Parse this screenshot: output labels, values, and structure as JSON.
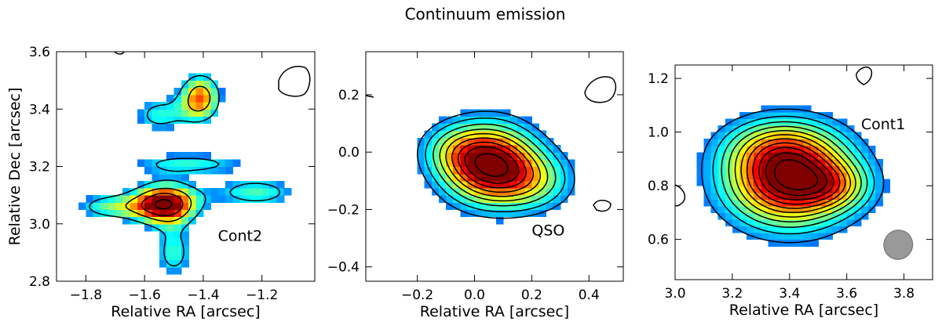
{
  "title": "Continuum emission",
  "chart_data": [
    {
      "type": "heatmap",
      "xlabel": "Relative RA [arcsec]",
      "ylabel": "Relative Dec [arcsec]",
      "xlim": [
        -1.9,
        -1.02
      ],
      "ylim": [
        2.8,
        3.6
      ],
      "xticks": [
        -1.8,
        -1.6,
        -1.4,
        -1.2
      ],
      "xtick_labels": [
        "−1.8",
        "−1.6",
        "−1.4",
        "−1.2"
      ],
      "yticks": [
        2.8,
        3.0,
        3.2,
        3.4,
        3.6
      ],
      "ytick_labels": [
        "2.8",
        "3.0",
        "3.2",
        "3.4",
        "3.6"
      ],
      "label": {
        "text": "Cont2",
        "x": -1.35,
        "y": 2.94
      },
      "colormap": "jet",
      "components": [
        {
          "x": -1.53,
          "y": 3.07,
          "sx": 0.08,
          "sy": 0.05,
          "amp": 1.0
        },
        {
          "x": -1.41,
          "y": 3.44,
          "sx": 0.05,
          "sy": 0.06,
          "amp": 0.72
        },
        {
          "x": -1.72,
          "y": 3.06,
          "sx": 0.09,
          "sy": 0.035,
          "amp": 0.42
        },
        {
          "x": -1.22,
          "y": 3.11,
          "sx": 0.11,
          "sy": 0.04,
          "amp": 0.42
        },
        {
          "x": -1.5,
          "y": 2.9,
          "sx": 0.05,
          "sy": 0.07,
          "amp": 0.4
        },
        {
          "x": -1.45,
          "y": 3.21,
          "sx": 0.16,
          "sy": 0.03,
          "amp": 0.38
        },
        {
          "x": -1.55,
          "y": 3.38,
          "sx": 0.07,
          "sy": 0.05,
          "amp": 0.38
        }
      ],
      "pixel_size": 0.025,
      "mask_threshold": 0.22,
      "contour_levels": [
        0.3,
        0.55,
        0.75,
        0.95
      ],
      "beam": null
    },
    {
      "type": "heatmap",
      "xlabel": "Relative RA [arcsec]",
      "ylabel": "",
      "xlim": [
        -0.38,
        0.52
      ],
      "ylim": [
        -0.45,
        0.35
      ],
      "xticks": [
        -0.2,
        0.0,
        0.2,
        0.4
      ],
      "xtick_labels": [
        "−0.2",
        "0.0",
        "0.2",
        "0.4"
      ],
      "yticks": [
        -0.4,
        -0.2,
        0.0,
        0.2
      ],
      "ytick_labels": [
        "−0.4",
        "−0.2",
        "0.0",
        "0.2"
      ],
      "label": {
        "text": "QSO",
        "x": 0.2,
        "y": -0.29
      },
      "colormap": "jet",
      "components": [
        {
          "x": 0.05,
          "y": -0.04,
          "sx": 0.11,
          "sy": 0.09,
          "amp": 1.0
        },
        {
          "x": 0.2,
          "y": -0.1,
          "sx": 0.1,
          "sy": 0.07,
          "amp": 0.35
        },
        {
          "x": -0.08,
          "y": 0.01,
          "sx": 0.08,
          "sy": 0.06,
          "amp": 0.2
        }
      ],
      "pixel_size": 0.025,
      "mask_threshold": 0.1,
      "contour_levels": [
        0.12,
        0.2,
        0.3,
        0.4,
        0.5,
        0.6,
        0.7,
        0.8,
        0.92
      ],
      "beam": null
    },
    {
      "type": "heatmap",
      "xlabel": "Relative RA [arcsec]",
      "ylabel": "",
      "xlim": [
        3.0,
        3.9
      ],
      "ylim": [
        0.45,
        1.25
      ],
      "xticks": [
        3.0,
        3.2,
        3.4,
        3.6,
        3.8
      ],
      "xtick_labels": [
        "3.0",
        "3.2",
        "3.4",
        "3.6",
        "3.8"
      ],
      "yticks": [
        0.6,
        0.8,
        1.0,
        1.2
      ],
      "ytick_labels": [
        "0.6",
        "0.8",
        "1.0",
        "1.2"
      ],
      "label": {
        "text": "Cont1",
        "x": 3.65,
        "y": 1.01
      },
      "colormap": "jet",
      "components": [
        {
          "x": 3.4,
          "y": 0.83,
          "sx": 0.15,
          "sy": 0.12,
          "amp": 1.0
        },
        {
          "x": 3.56,
          "y": 0.8,
          "sx": 0.09,
          "sy": 0.06,
          "amp": 0.25
        },
        {
          "x": 3.35,
          "y": 0.95,
          "sx": 0.13,
          "sy": 0.07,
          "amp": 0.2
        }
      ],
      "pixel_size": 0.025,
      "mask_threshold": 0.1,
      "contour_levels": [
        0.12,
        0.2,
        0.28,
        0.36,
        0.44,
        0.52,
        0.6,
        0.68,
        0.76,
        0.84,
        0.92
      ],
      "beam": {
        "x": 3.78,
        "y": 0.58,
        "a": 0.1,
        "b": 0.09,
        "angle": 25,
        "color": "#999999"
      }
    }
  ]
}
